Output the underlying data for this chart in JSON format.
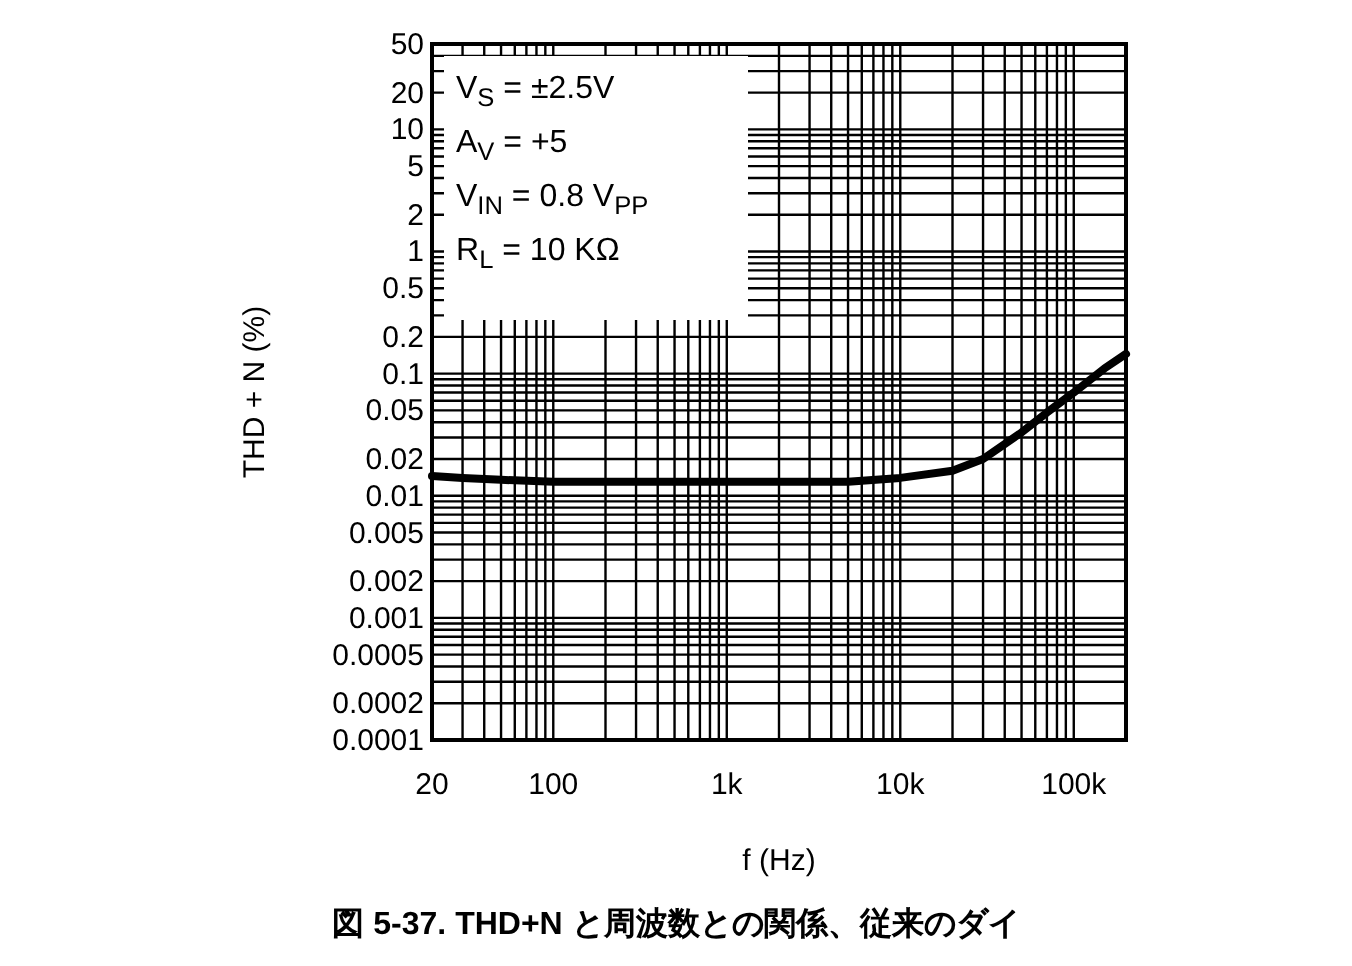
{
  "chart_data": {
    "type": "line",
    "title": "図 5-37. THD+N と周波数との関係、従来のダイ",
    "xlabel": "f (Hz)",
    "ylabel": "THD + N (%)",
    "annotations": [
      "V$_{S}$ = ±2.5V",
      "A$_{V}$ = +5",
      "V$_{IN}$ = 0.8 V$_{PP}$",
      "R$_{L}$ = 10 KΩ"
    ],
    "x": [
      20,
      30,
      50,
      100,
      200,
      500,
      1000,
      2000,
      5000,
      10000,
      20000,
      30000,
      50000,
      70000,
      100000,
      150000,
      200000
    ],
    "series": [
      {
        "color": "#000000",
        "line_style": "solid",
        "values": [
          0.0145,
          0.014,
          0.0135,
          0.013,
          0.013,
          0.013,
          0.013,
          0.013,
          0.013,
          0.014,
          0.016,
          0.02,
          0.033,
          0.048,
          0.07,
          0.11,
          0.145
        ]
      }
    ],
    "log": "xy",
    "grid": true,
    "xlim": [
      20,
      200000
    ],
    "ylim": [
      0.0001,
      50
    ],
    "xticks": [
      20,
      100,
      {
        "value": 1000,
        "label": "1k"
      },
      {
        "value": 10000,
        "label": "10k"
      },
      {
        "value": 100000,
        "label": "100k"
      }
    ],
    "yticks": [
      50,
      20,
      10,
      5,
      2,
      1,
      0.5,
      0.2,
      0.1,
      0.05,
      0.02,
      0.01,
      0.005,
      0.002,
      0.001,
      0.0005,
      0.0002,
      0.0001
    ]
  }
}
